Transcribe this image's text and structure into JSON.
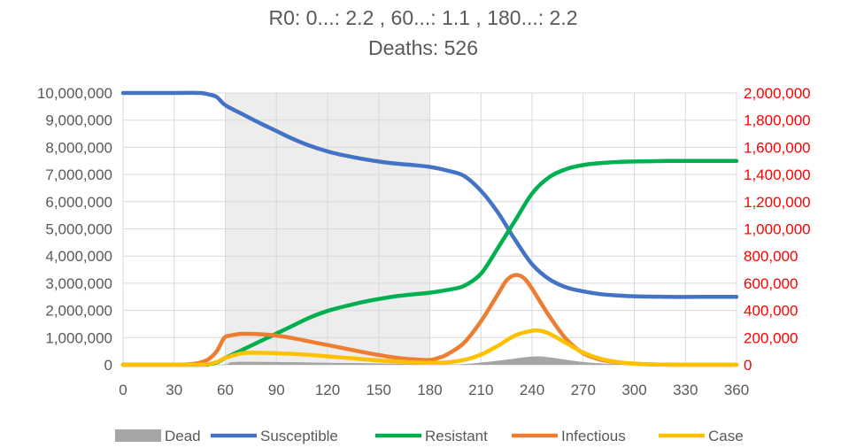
{
  "chart_data": {
    "type": "line",
    "title": "R0:  0...: 2.2 ,  60...: 1.1 ,  180...: 2.2",
    "subtitle": "Deaths: 526",
    "x_ticks": [
      "0",
      "30",
      "60",
      "90",
      "120",
      "150",
      "180",
      "210",
      "240",
      "270",
      "300",
      "330",
      "360"
    ],
    "xlim": [
      0,
      360
    ],
    "ylim_left": [
      0,
      10000000
    ],
    "ylim_right": [
      0,
      2000000
    ],
    "y_ticks_left": [
      "0",
      "1,000,000",
      "2,000,000",
      "3,000,000",
      "4,000,000",
      "5,000,000",
      "6,000,000",
      "7,000,000",
      "8,000,000",
      "9,000,000",
      "10,000,000"
    ],
    "y_ticks_right": [
      "0",
      "200,000",
      "400,000",
      "600,000",
      "800,000",
      "1,000,000",
      "1,200,000",
      "1,400,000",
      "1,600,000",
      "1,800,000",
      "2,000,000"
    ],
    "shaded_range": [
      60,
      180
    ],
    "grid": true,
    "legend_position": "bottom",
    "series": [
      {
        "name": "Dead",
        "kind": "area",
        "axis": "right",
        "color": "#a5a5a5",
        "x": [
          0,
          55,
          65,
          90,
          120,
          150,
          180,
          200,
          220,
          240,
          250,
          270,
          290,
          300,
          360
        ],
        "y": [
          0,
          0,
          20000,
          20000,
          15000,
          10000,
          3000,
          5000,
          30000,
          60000,
          55000,
          20000,
          4000,
          0,
          0
        ]
      },
      {
        "name": "Susceptible",
        "kind": "line",
        "axis": "left",
        "color": "#4472c4",
        "x": [
          0,
          30,
          45,
          50,
          55,
          60,
          70,
          80,
          90,
          100,
          110,
          120,
          130,
          140,
          150,
          160,
          170,
          180,
          190,
          200,
          210,
          220,
          230,
          240,
          250,
          260,
          270,
          280,
          290,
          300,
          320,
          340,
          360
        ],
        "y": [
          10000000,
          10000000,
          10000000,
          9950000,
          9850000,
          9550000,
          9220000,
          8900000,
          8600000,
          8300000,
          8050000,
          7850000,
          7700000,
          7580000,
          7480000,
          7400000,
          7350000,
          7280000,
          7150000,
          6950000,
          6400000,
          5600000,
          4600000,
          3700000,
          3150000,
          2850000,
          2700000,
          2600000,
          2550000,
          2520000,
          2500000,
          2500000,
          2500000
        ]
      },
      {
        "name": "Resistant",
        "kind": "line",
        "axis": "left",
        "color": "#00b050",
        "x": [
          0,
          45,
          50,
          55,
          60,
          70,
          80,
          90,
          100,
          110,
          120,
          130,
          140,
          150,
          160,
          170,
          180,
          190,
          200,
          210,
          220,
          230,
          240,
          250,
          260,
          270,
          280,
          290,
          300,
          320,
          340,
          360
        ],
        "y": [
          0,
          0,
          20000,
          80000,
          250000,
          550000,
          850000,
          1150000,
          1450000,
          1750000,
          1980000,
          2150000,
          2300000,
          2420000,
          2520000,
          2590000,
          2650000,
          2750000,
          2900000,
          3350000,
          4300000,
          5300000,
          6300000,
          6900000,
          7200000,
          7350000,
          7420000,
          7460000,
          7480000,
          7500000,
          7500000,
          7500000
        ]
      },
      {
        "name": "Infectious",
        "kind": "line",
        "axis": "right",
        "color": "#ed7d31",
        "x": [
          0,
          30,
          40,
          45,
          50,
          55,
          58,
          60,
          65,
          70,
          80,
          90,
          100,
          110,
          120,
          130,
          140,
          150,
          160,
          170,
          180,
          185,
          190,
          200,
          210,
          220,
          225,
          230,
          235,
          240,
          250,
          260,
          270,
          280,
          290,
          300,
          310,
          320,
          330,
          340,
          360
        ],
        "y": [
          0,
          0,
          5000,
          15000,
          40000,
          100000,
          170000,
          205000,
          220000,
          228000,
          225000,
          215000,
          195000,
          170000,
          145000,
          120000,
          95000,
          72000,
          52000,
          40000,
          35000,
          50000,
          75000,
          160000,
          320000,
          520000,
          620000,
          660000,
          640000,
          560000,
          360000,
          190000,
          85000,
          38000,
          18000,
          8000,
          3000,
          1000,
          0,
          0,
          0
        ]
      },
      {
        "name": "Case",
        "kind": "line",
        "axis": "right",
        "color": "#ffc000",
        "x": [
          0,
          40,
          50,
          55,
          60,
          70,
          80,
          90,
          100,
          110,
          120,
          130,
          140,
          150,
          160,
          170,
          180,
          190,
          200,
          210,
          220,
          230,
          240,
          245,
          250,
          260,
          270,
          280,
          290,
          300,
          320,
          340,
          360
        ],
        "y": [
          0,
          0,
          5000,
          20000,
          50000,
          85000,
          88000,
          85000,
          80000,
          72000,
          62000,
          52000,
          42000,
          32000,
          24000,
          18000,
          15000,
          18000,
          35000,
          75000,
          140000,
          215000,
          250000,
          250000,
          230000,
          160000,
          90000,
          45000,
          20000,
          8000,
          0,
          0,
          0
        ]
      }
    ]
  }
}
